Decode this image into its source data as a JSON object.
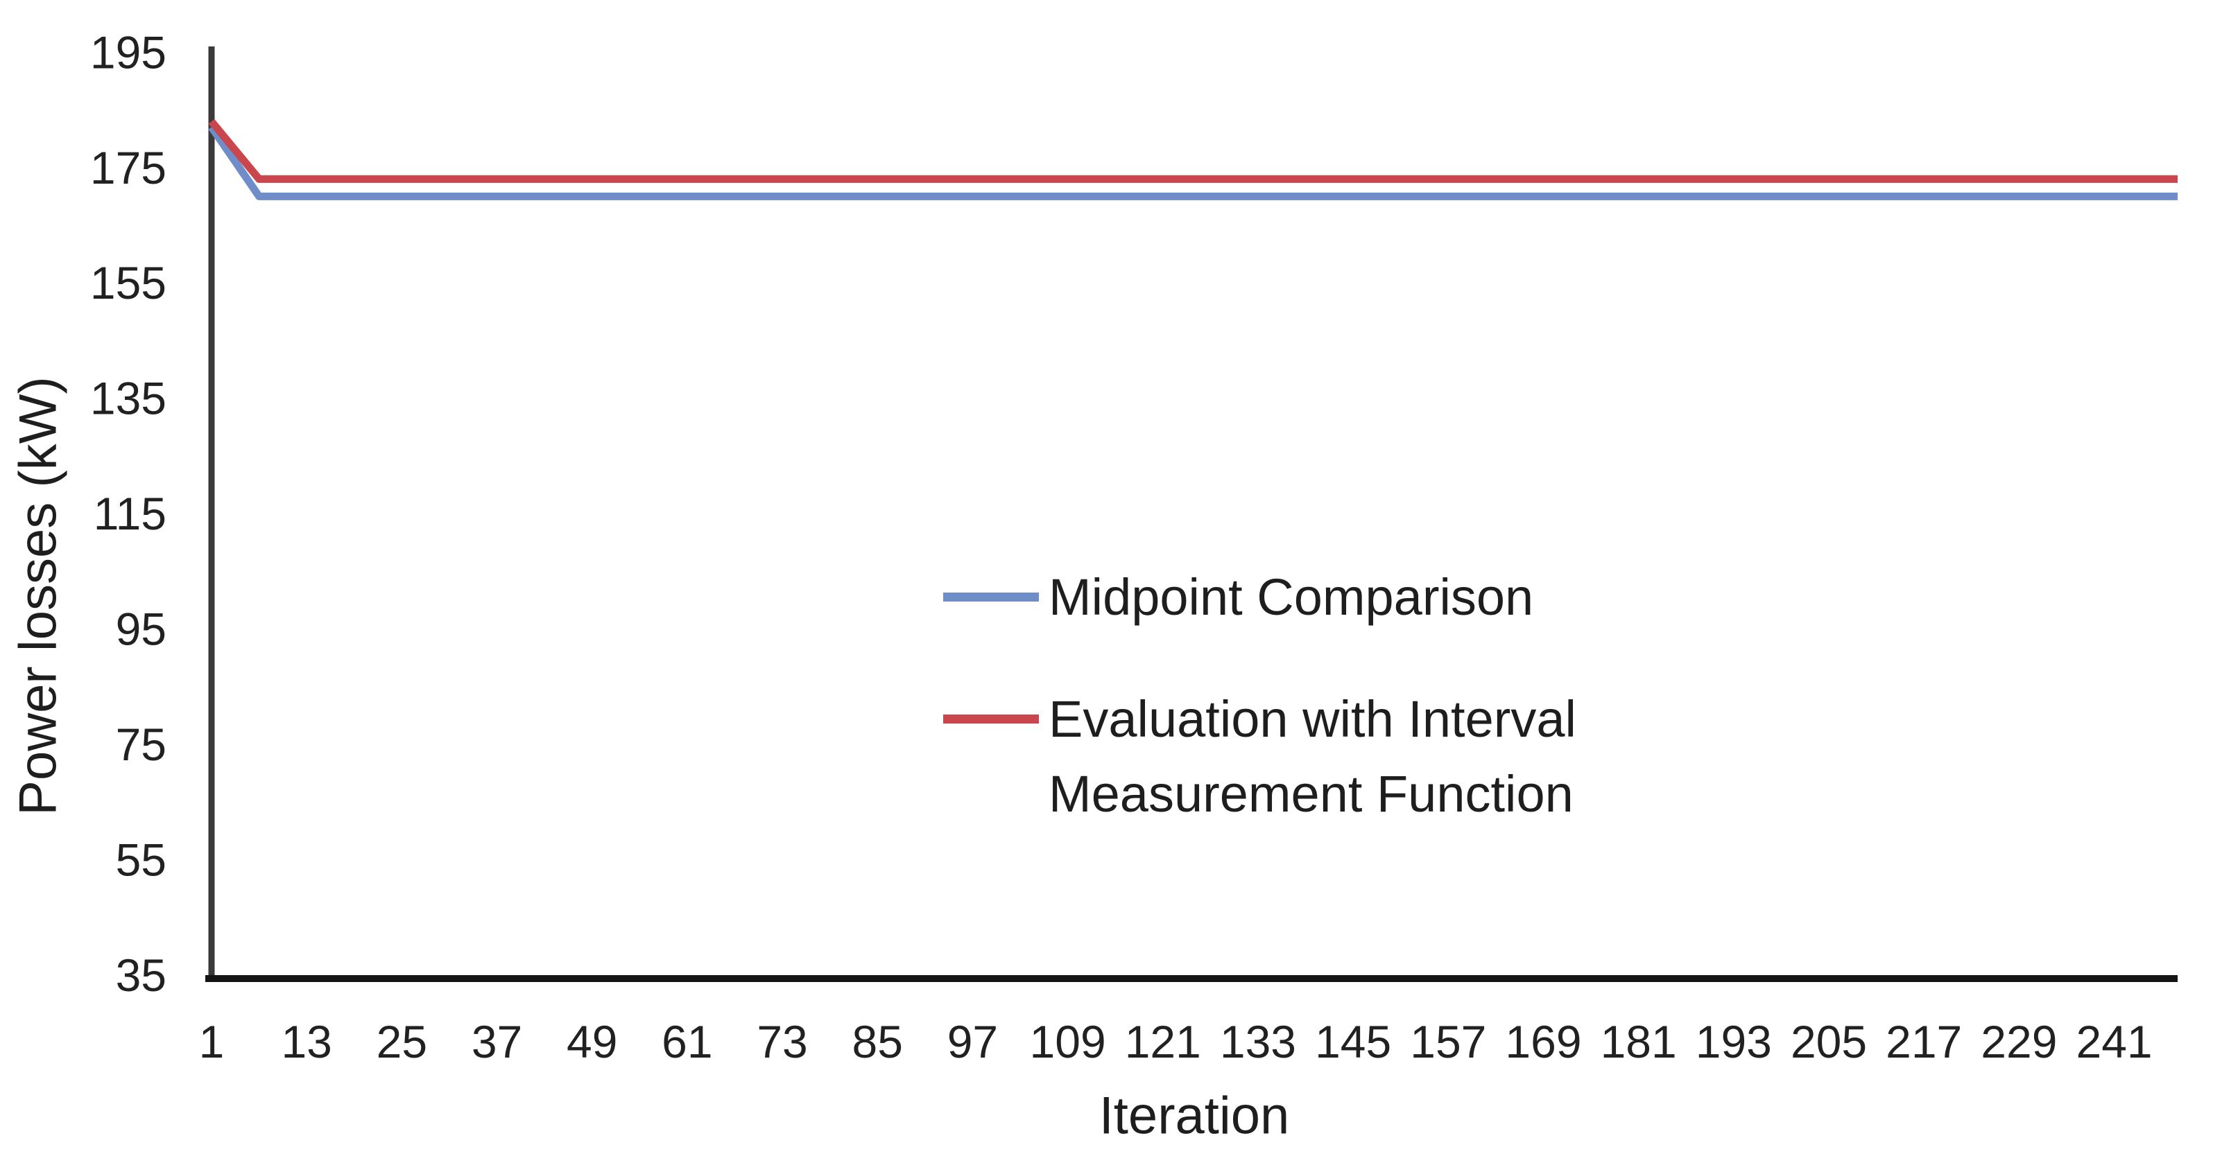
{
  "chart_data": {
    "type": "line",
    "title": "",
    "xlabel": "Iteration",
    "ylabel": "Power losses (kW)",
    "xlim": [
      1,
      249
    ],
    "ylim": [
      35,
      196
    ],
    "xticks": [
      1,
      13,
      25,
      37,
      49,
      61,
      73,
      85,
      97,
      109,
      121,
      133,
      145,
      157,
      169,
      181,
      193,
      205,
      217,
      229,
      241
    ],
    "yticks": [
      195,
      175,
      155,
      135,
      115,
      95,
      75,
      55,
      35
    ],
    "grid": false,
    "legend_position": "inside-center",
    "axis_color": "#2b2b2b",
    "text_color": "#1e1e1e",
    "series": [
      {
        "name": "Midpoint Comparison",
        "color": "#6F8DC9",
        "legend_lines": [
          "Midpoint Comparison"
        ],
        "points": [
          [
            1,
            182
          ],
          [
            7,
            170
          ],
          [
            249,
            170
          ]
        ]
      },
      {
        "name": "Evaluation with Interval Measurement Function",
        "color": "#C9464D",
        "legend_lines": [
          "Evaluation with Interval",
          "Measurement Function"
        ],
        "points": [
          [
            1,
            183
          ],
          [
            7,
            173
          ],
          [
            249,
            173
          ]
        ]
      }
    ]
  }
}
